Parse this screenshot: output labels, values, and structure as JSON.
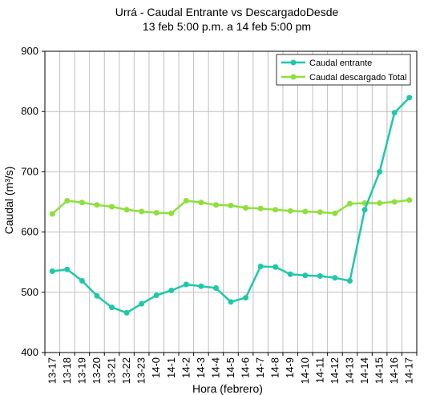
{
  "chart_data": {
    "type": "line",
    "title": "Urrá - Caudal Entrante vs DescargadoDesde",
    "subtitle": "13 feb 5:00 p.m. a 14 feb 5:00 pm",
    "xlabel": "Hora (febrero)",
    "ylabel": "Caudal (m³/s)",
    "ylim": [
      400,
      900
    ],
    "yticks": [
      400,
      500,
      600,
      700,
      800,
      900
    ],
    "grid": true,
    "legend_position": "top-right",
    "categories": [
      "13-17",
      "13-18",
      "13-19",
      "13-20",
      "13-21",
      "13-22",
      "13-23",
      "14-0",
      "14-1",
      "14-2",
      "14-3",
      "14-4",
      "14-5",
      "14-6",
      "14-7",
      "14-8",
      "14-9",
      "14-10",
      "14-11",
      "14-12",
      "14-13",
      "14-14",
      "14-15",
      "14-16",
      "14-17"
    ],
    "series": [
      {
        "name": "Caudal entrante",
        "color": "#1fc8a8",
        "values": [
          535,
          538,
          519,
          494,
          475,
          466,
          481,
          495,
          503,
          513,
          510,
          507,
          484,
          491,
          543,
          542,
          530,
          528,
          527,
          524,
          519,
          637,
          700,
          798,
          823
        ]
      },
      {
        "name": "Caudal descargado Total",
        "color": "#8ee03c",
        "values": [
          630,
          652,
          649,
          645,
          642,
          637,
          634,
          632,
          631,
          652,
          649,
          645,
          644,
          640,
          639,
          637,
          635,
          634,
          633,
          631,
          647,
          648,
          648,
          650,
          653
        ]
      }
    ]
  }
}
